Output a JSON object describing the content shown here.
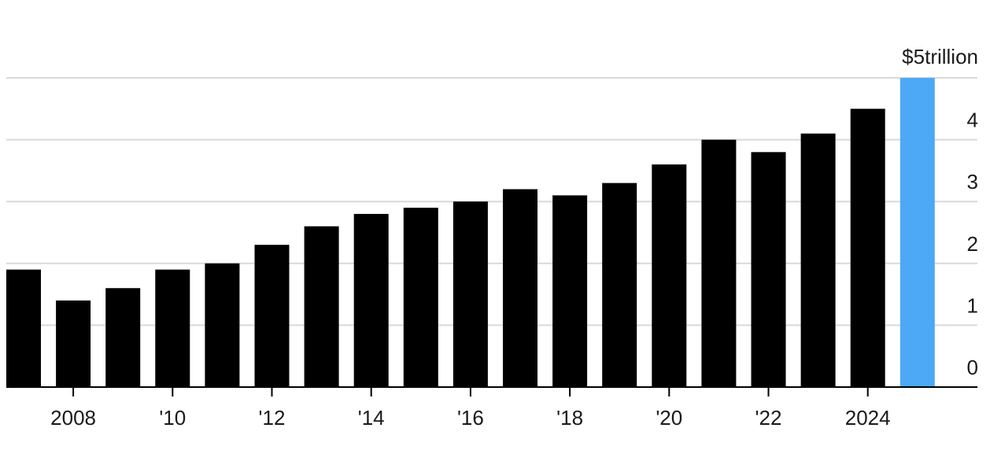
{
  "chart_data": {
    "type": "bar",
    "title": "",
    "xlabel": "",
    "ylabel": "",
    "y_unit_label": "$5trillion",
    "ylim": [
      0,
      5
    ],
    "y_ticks": [
      0,
      1,
      2,
      3,
      4
    ],
    "y_tick_labels": [
      "0",
      "1",
      "2",
      "3",
      "4"
    ],
    "y_axis_position": "right",
    "grid": true,
    "legend": "none",
    "x": [
      2007,
      2008,
      2009,
      2010,
      2011,
      2012,
      2013,
      2014,
      2015,
      2016,
      2017,
      2018,
      2019,
      2020,
      2021,
      2022,
      2023,
      2024,
      2025
    ],
    "values": [
      1.9,
      1.4,
      1.6,
      1.9,
      2.0,
      2.3,
      2.6,
      2.8,
      2.9,
      3.0,
      3.2,
      3.1,
      3.3,
      3.6,
      4.0,
      3.8,
      4.1,
      4.5,
      5.0
    ],
    "x_tick_values": [
      2008,
      2010,
      2012,
      2014,
      2016,
      2018,
      2020,
      2022,
      2024
    ],
    "x_tick_labels": [
      "2008",
      "'10",
      "'12",
      "'14",
      "'16",
      "'18",
      "'20",
      "'22",
      "2024"
    ],
    "bar_color": "#000000",
    "highlight_color": "#4da9f5",
    "highlight_x": [
      2025
    ],
    "gridline_color": "#d9d9d9"
  }
}
